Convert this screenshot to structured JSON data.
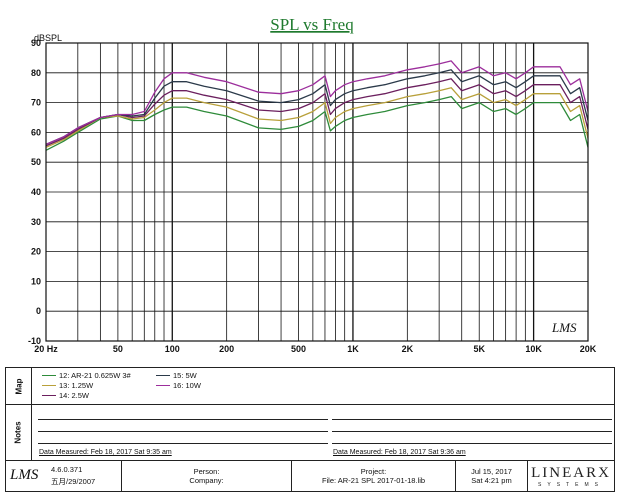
{
  "chart_data": {
    "type": "line",
    "title": "SPL vs Freq",
    "ylabel": "dBSPL",
    "xlim": [
      20,
      20000
    ],
    "ylim": [
      -10,
      90
    ],
    "x_scale": "log",
    "grid": true,
    "y_ticks": [
      -10,
      0,
      10,
      20,
      30,
      40,
      50,
      60,
      70,
      80,
      90
    ],
    "x_tick_labels": [
      {
        "label": "20 Hz",
        "value": 20
      },
      {
        "label": "50",
        "value": 50
      },
      {
        "label": "100",
        "value": 100
      },
      {
        "label": "200",
        "value": 200
      },
      {
        "label": "500",
        "value": 500
      },
      {
        "label": "1K",
        "value": 1000
      },
      {
        "label": "2K",
        "value": 2000
      },
      {
        "label": "5K",
        "value": 5000
      },
      {
        "label": "10K",
        "value": 10000
      },
      {
        "label": "20K",
        "value": 20000
      }
    ],
    "x": [
      20,
      25,
      30,
      40,
      50,
      60,
      70,
      80,
      90,
      100,
      120,
      150,
      200,
      300,
      400,
      500,
      600,
      700,
      750,
      800,
      900,
      1000,
      1200,
      1500,
      2000,
      2500,
      3000,
      3500,
      4000,
      5000,
      6000,
      7000,
      8000,
      9000,
      10000,
      12000,
      14000,
      16000,
      18000,
      20000
    ],
    "series": [
      {
        "name": "12: AR-21  0.625W  3#",
        "color": "#2e8b3a",
        "values": [
          54,
          57,
          60,
          64.5,
          65.5,
          64,
          64,
          66,
          67.5,
          68.5,
          68.5,
          67,
          65.5,
          61.5,
          61,
          62,
          64,
          67,
          60.5,
          62,
          64,
          65,
          66,
          67,
          69,
          70,
          71,
          72,
          68,
          70,
          67,
          68,
          66,
          68,
          70,
          70,
          70,
          64,
          66,
          55
        ]
      },
      {
        "name": "13: 1.25W",
        "color": "#b8a03a",
        "values": [
          55,
          57.5,
          60.5,
          65,
          65.5,
          64.5,
          65,
          67.5,
          70,
          71.5,
          71.5,
          70,
          68.5,
          64.5,
          64,
          65,
          67,
          70,
          63,
          65,
          67,
          68,
          69,
          70,
          72,
          73,
          74,
          75,
          71,
          73,
          70,
          71,
          69,
          71,
          73,
          73,
          73,
          67,
          69,
          58
        ]
      },
      {
        "name": "14: 2.5W",
        "color": "#6b1f5e",
        "values": [
          55.5,
          58,
          61,
          65,
          66,
          65,
          65.5,
          69.5,
          72.5,
          74,
          74,
          72.5,
          71,
          67.5,
          67,
          68,
          70,
          73,
          66,
          68,
          70,
          71,
          72,
          73,
          75,
          76,
          77,
          78,
          74,
          76,
          73,
          74,
          72,
          74,
          76,
          76,
          76,
          70,
          72,
          61
        ]
      },
      {
        "name": "15: 5W",
        "color": "#2b3a4a",
        "values": [
          56,
          58.5,
          61.5,
          65,
          66,
          65.5,
          66,
          71.5,
          75.5,
          77,
          77,
          75.5,
          74,
          70.5,
          70,
          71,
          73,
          76,
          69,
          71,
          73,
          74,
          75,
          76,
          78,
          79,
          80,
          81,
          77,
          79,
          76,
          77,
          75,
          77,
          79,
          79,
          79,
          73,
          75,
          64
        ]
      },
      {
        "name": "16: 10W",
        "color": "#9c2e9c",
        "values": [
          56,
          58.5,
          61.5,
          65,
          66,
          66,
          67,
          73.5,
          78,
          80,
          80,
          78.5,
          77,
          73.5,
          73,
          74,
          76,
          79,
          72,
          74,
          76,
          77,
          78,
          79,
          81,
          82,
          83,
          84,
          80,
          82,
          79,
          80,
          78,
          80,
          82,
          82,
          82,
          76,
          78,
          67
        ]
      }
    ]
  },
  "map": {
    "label": "Map",
    "legend": [
      {
        "text": "12: AR-21  0.625W    3#",
        "color": "#2e8b3a"
      },
      {
        "text": "13: 1.25W",
        "color": "#b8a03a"
      },
      {
        "text": "14: 2.5W",
        "color": "#6b1f5e"
      },
      {
        "text": "15: 5W",
        "color": "#2b3a4a"
      },
      {
        "text": "16: 10W",
        "color": "#9c2e9c"
      }
    ]
  },
  "notes": {
    "label": "Notes",
    "measured_left": "Data Measured: Feb 18, 2017  Sat  9:35 am",
    "measured_right": "Data Measured: Feb 18, 2017  Sat  9:36 am"
  },
  "footer": {
    "logo": "LMS",
    "version": "4.6.0.371",
    "version_date": "五月/29/2007",
    "person_label": "Person:",
    "company_label": "Company:",
    "project_label": "Project:",
    "file_label": "File: AR-21  SPL  2017-01-18.lib",
    "date": "Jul 15, 2017",
    "time": "Sat  4:21 pm",
    "brand": "LINEARX",
    "brand_sub": "SYSTEMS"
  },
  "chart_logo": "LMS"
}
